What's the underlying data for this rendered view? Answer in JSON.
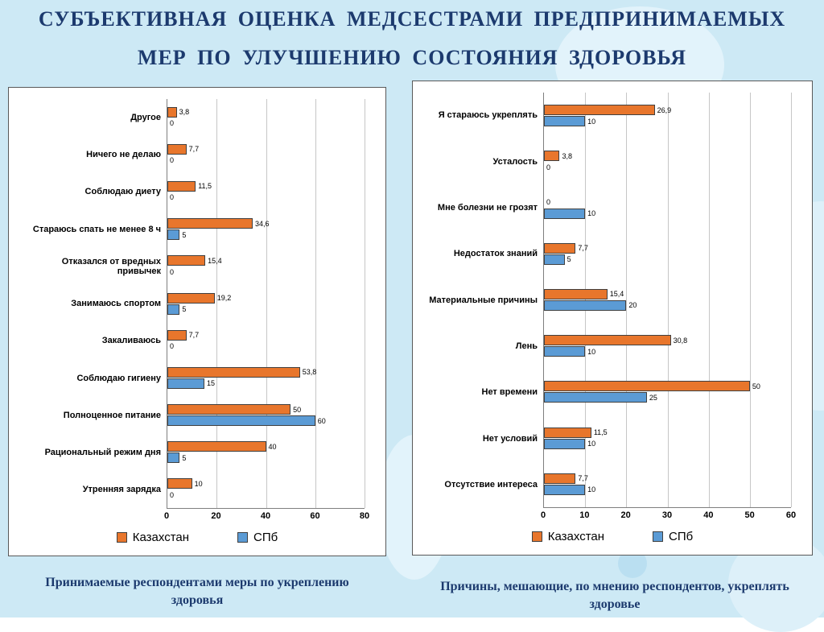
{
  "title": {
    "line1": "СУБЪЕКТИВНАЯ ОЦЕНКА МЕДСЕСТРАМИ ПРЕДПРИНИМАЕМЫХ",
    "line2": "МЕР ПО УЛУЧШЕНИЮ СОСТОЯНИЯ ЗДОРОВЬЯ"
  },
  "colors": {
    "kazakhstan": "#e8762c",
    "spb": "#5b9bd5",
    "title_text": "#1c3a6e",
    "slide_background": "#cde9f5"
  },
  "legend": {
    "kazakhstan": "Казахстан",
    "spb": "СПб"
  },
  "captions": {
    "left": "Принимаемые респондентами меры по укреплению здоровья",
    "right": "Причины, мешающие, по мнению респондентов, укреплять здоровье"
  },
  "chart_data": [
    {
      "type": "bar",
      "orientation": "horizontal",
      "title": "Принимаемые респондентами меры по укреплению здоровья",
      "categories": [
        "Другое",
        "Ничего не делаю",
        "Соблюдаю диету",
        "Стараюсь спать не менее 8 ч",
        "Отказался от вредных привычек",
        "Занимаюсь спортом",
        "Закаливаюсь",
        "Соблюдаю гигиену",
        "Полноценное питание",
        "Рациональный режим дня",
        "Утренняя зарядка"
      ],
      "series": [
        {
          "name": "Казахстан",
          "values": [
            3.8,
            7.7,
            11.5,
            34.6,
            15.4,
            19.2,
            7.7,
            53.8,
            50,
            40,
            10
          ],
          "labels": [
            "3,8",
            "7,7",
            "11,5",
            "34,6",
            "15,4",
            "19,2",
            "7,7",
            "53,8",
            "50",
            "40",
            "10"
          ]
        },
        {
          "name": "СПб",
          "values": [
            0,
            0,
            0,
            5,
            0,
            5,
            0,
            15,
            60,
            5,
            0
          ],
          "labels": [
            "0",
            "0",
            "0",
            "5",
            "0",
            "5",
            "0",
            "15",
            "60",
            "5",
            "0"
          ]
        }
      ],
      "xlim": [
        0,
        80
      ],
      "xticks": [
        0,
        20,
        40,
        60,
        80
      ],
      "xlabel": "",
      "ylabel": "",
      "grid": true,
      "legend_position": "bottom"
    },
    {
      "type": "bar",
      "orientation": "horizontal",
      "title": "Причины, мешающие, по мнению респондентов, укреплять здоровье",
      "categories": [
        "Я стараюсь укреплять",
        "Усталость",
        "Мне болезни не грозят",
        "Недостаток знаний",
        "Материальные причины",
        "Лень",
        "Нет времени",
        "Нет условий",
        "Отсутствие интереса"
      ],
      "series": [
        {
          "name": "Казахстан",
          "values": [
            26.9,
            3.8,
            0,
            7.7,
            15.4,
            30.8,
            50,
            11.5,
            7.7
          ],
          "labels": [
            "26,9",
            "3,8",
            "0",
            "7,7",
            "15,4",
            "30,8",
            "50",
            "11,5",
            "7,7"
          ]
        },
        {
          "name": "СПб",
          "values": [
            10,
            0,
            10,
            5,
            20,
            10,
            25,
            10,
            10
          ],
          "labels": [
            "10",
            "0",
            "10",
            "5",
            "20",
            "10",
            "25",
            "10",
            "10"
          ]
        }
      ],
      "xlim": [
        0,
        60
      ],
      "xticks": [
        0,
        10,
        20,
        30,
        40,
        50,
        60
      ],
      "xlabel": "",
      "ylabel": "",
      "grid": true,
      "legend_position": "bottom"
    }
  ]
}
